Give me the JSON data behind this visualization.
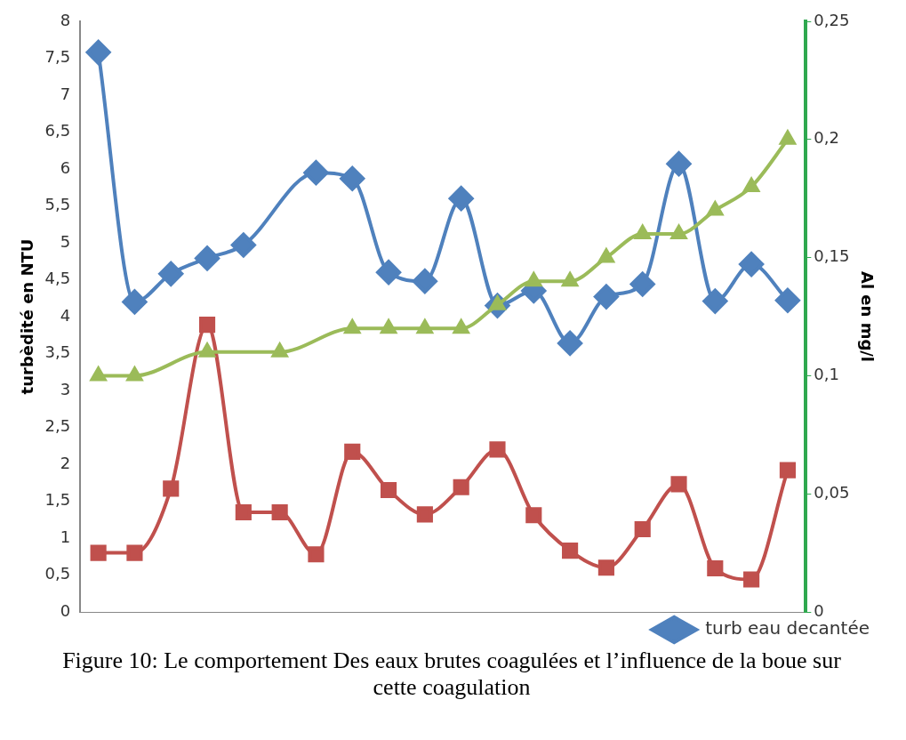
{
  "chart_data": {
    "type": "line",
    "ylabel": "turbèdité en NTU",
    "y2label": "Al en mg/l",
    "categories": [
      null,
      null,
      null,
      null,
      null,
      null,
      null,
      null,
      null,
      null,
      null,
      null,
      null,
      null,
      null,
      null,
      null,
      null,
      null,
      null
    ],
    "series": [
      {
        "name": "turb eau decantée",
        "color": "#4f81bd",
        "marker": "diamond",
        "values": [
          7.58,
          4.2,
          4.58,
          4.79,
          4.97,
          null,
          5.95,
          5.87,
          4.6,
          4.48,
          5.6,
          4.15,
          4.35,
          3.64,
          4.27,
          4.44,
          6.07,
          4.21,
          4.71,
          4.22
        ]
      },
      {
        "color": "#c0504d",
        "marker": "square",
        "values": [
          0.8,
          0.8,
          1.67,
          3.89,
          1.35,
          1.35,
          0.78,
          2.17,
          1.65,
          1.32,
          1.69,
          2.2,
          1.31,
          0.83,
          0.6,
          1.12,
          1.73,
          0.59,
          0.44,
          1.92
        ]
      },
      {
        "color": "#9bbb59",
        "marker": "triangle",
        "axis": "y2",
        "values": [
          0.1,
          0.1,
          null,
          0.11,
          null,
          0.11,
          null,
          0.12,
          0.12,
          0.12,
          0.12,
          0.13,
          0.14,
          0.14,
          0.15,
          0.16,
          0.16,
          0.17,
          0.18,
          0.2
        ]
      }
    ],
    "ylim": [
      0,
      8
    ],
    "yticks": [
      0,
      {
        "value": 0.5,
        "label": "0,5"
      },
      1,
      {
        "value": 1.5,
        "label": "1,5"
      },
      2,
      {
        "value": 2.5,
        "label": "2,5"
      },
      3,
      {
        "value": 3.5,
        "label": "3,5"
      },
      4,
      {
        "value": 4.5,
        "label": "4,5"
      },
      5,
      {
        "value": 5.5,
        "label": "5,5"
      },
      6,
      {
        "value": 6.5,
        "label": "6,5"
      },
      7,
      {
        "value": 7.5,
        "label": "7,5"
      },
      8
    ],
    "y2lim": [
      0,
      0.25
    ],
    "y2ticks": [
      0,
      {
        "value": 0.05,
        "label": "0,05"
      },
      {
        "value": 0.1,
        "label": "0,1"
      },
      {
        "value": 0.15,
        "label": "0,15"
      },
      {
        "value": 0.2,
        "label": "0,2"
      },
      {
        "value": 0.25,
        "label": "0,25"
      }
    ],
    "tick_labels": "y",
    "grid": false,
    "legend": "bottom right",
    "annotations": [
      "Figure 10: Le comportement  Des eaux brutes coagulées et l’influence de la boue sur cette coagulation"
    ]
  }
}
